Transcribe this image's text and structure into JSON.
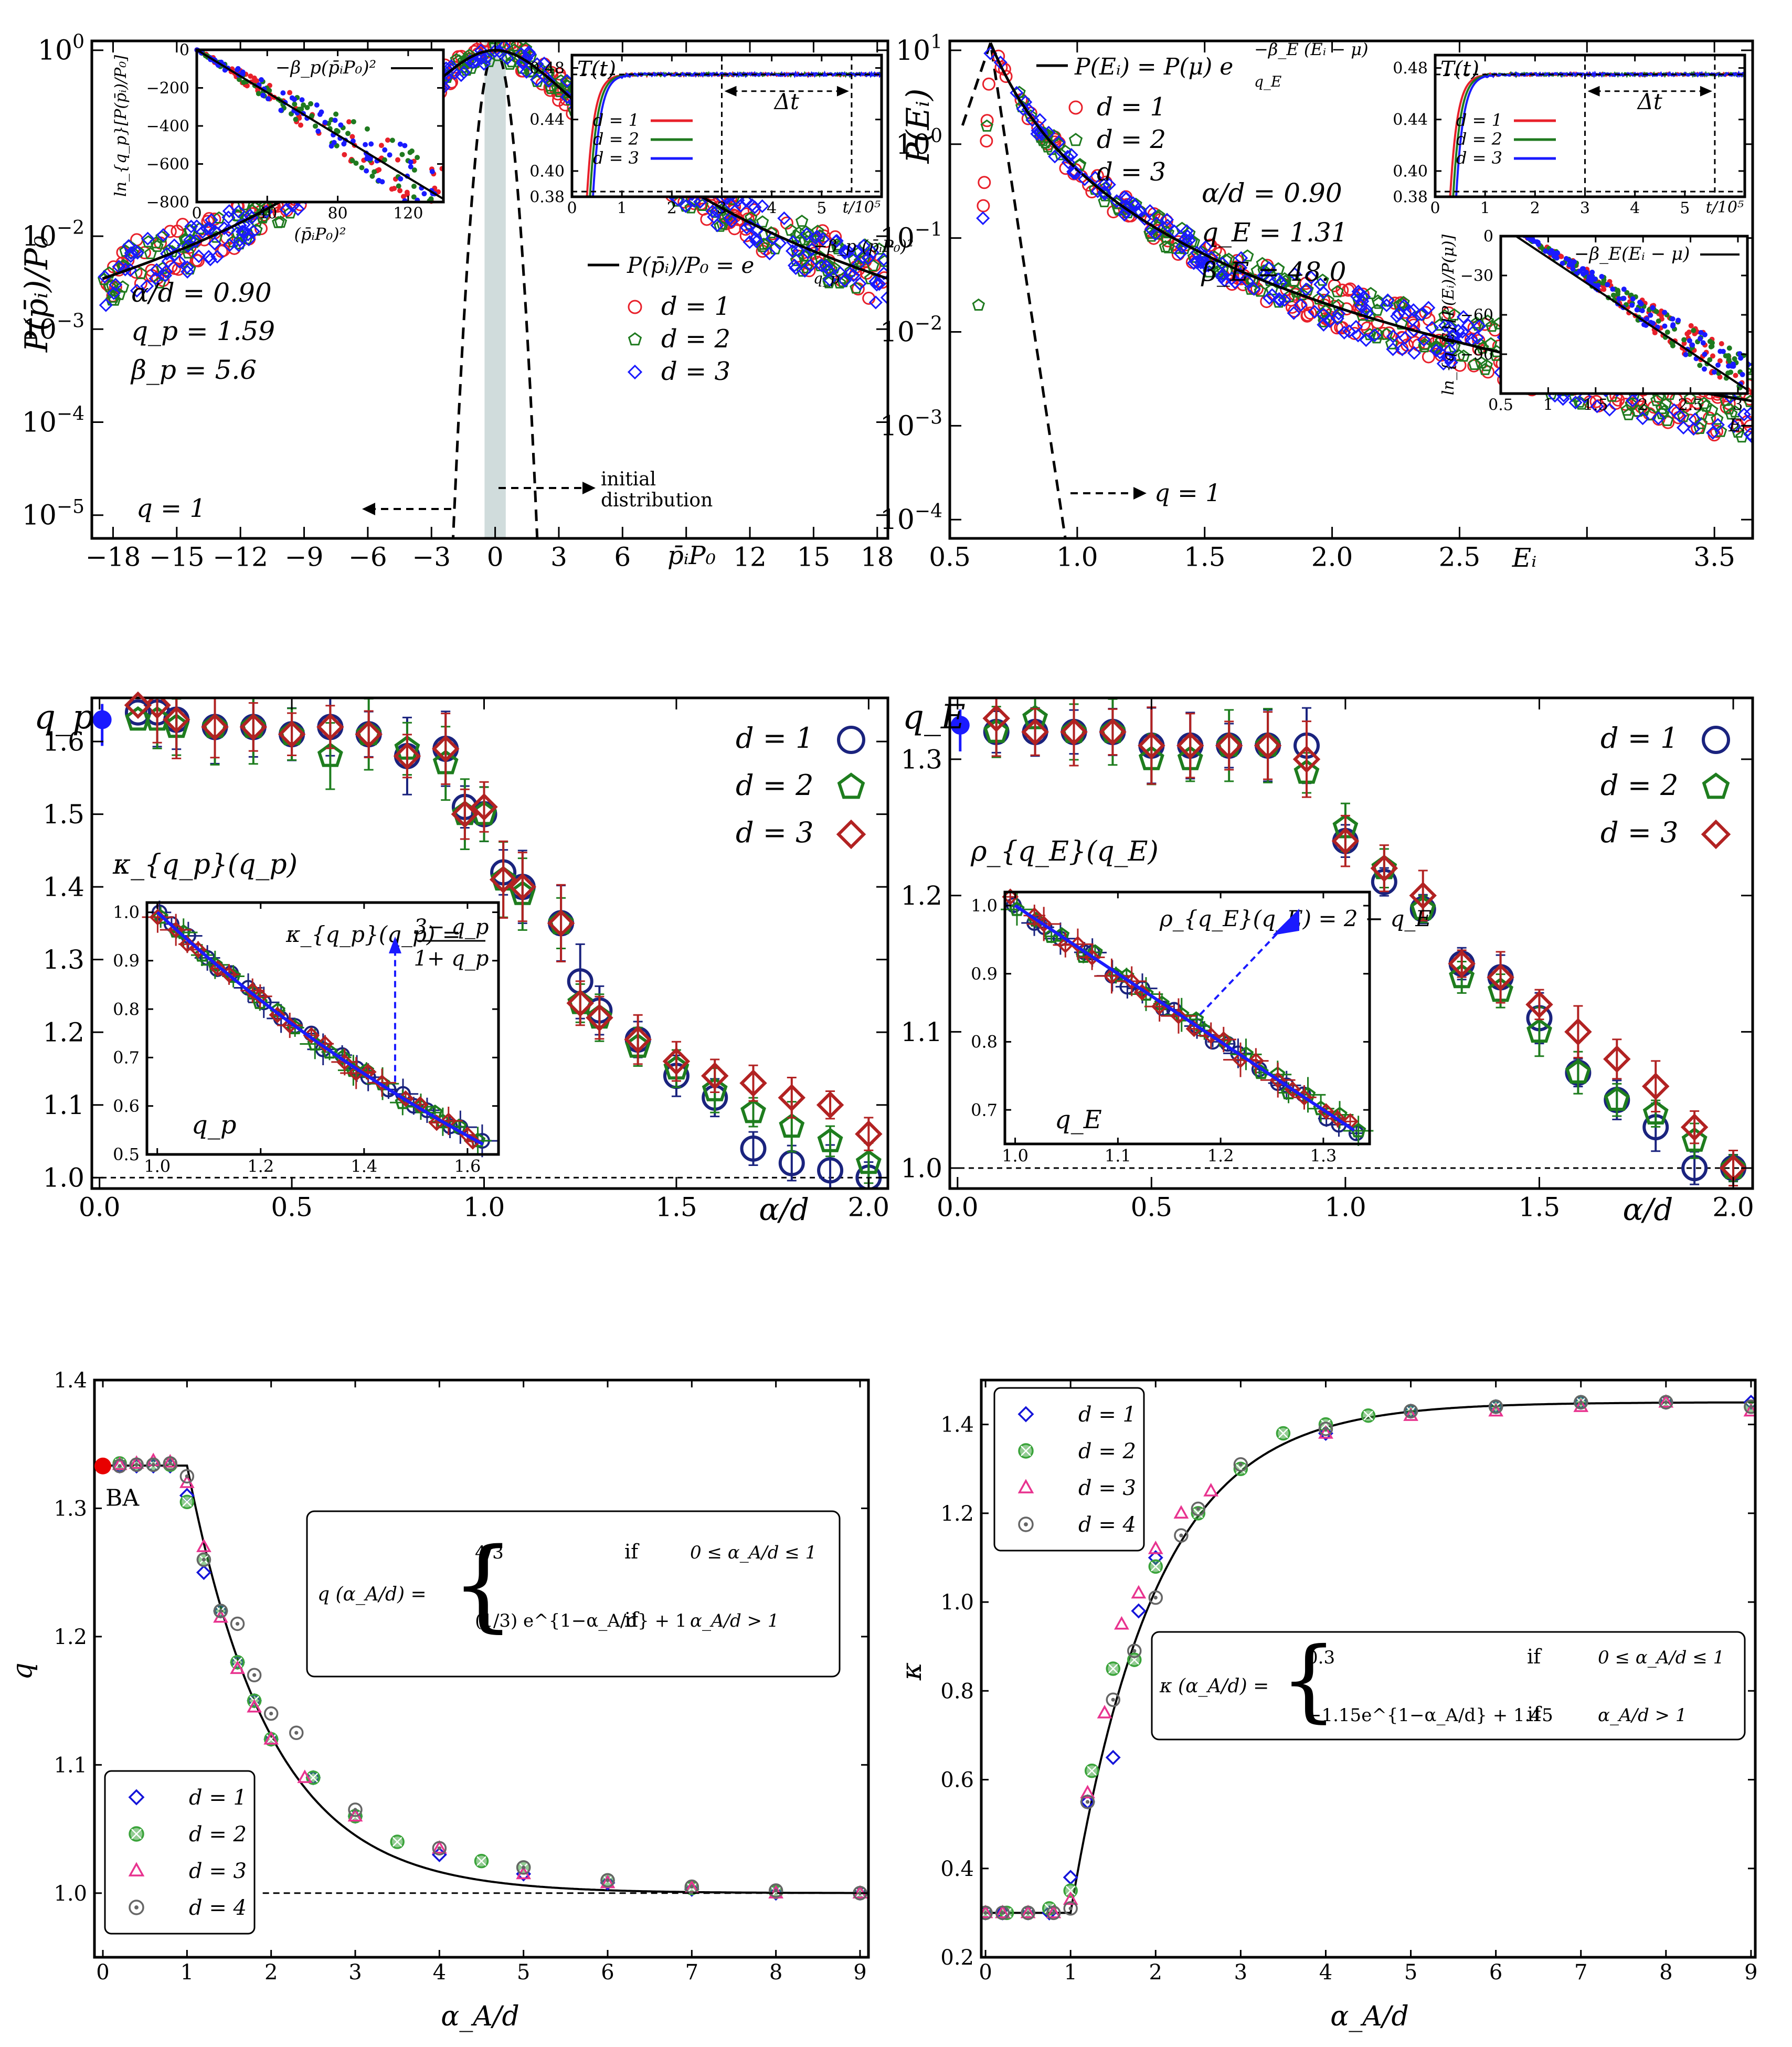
{
  "colors": {
    "d1": "#e8202a",
    "d2": "#1f7a1f",
    "d3": "#1a1aff",
    "d1_big": "#1a237e",
    "d2_big": "#1e7d1e",
    "d3_big": "#b22222",
    "d1_bottom": "#1414d9",
    "d2_bottom": "#3aa33a",
    "d3_bottom": "#e8338f",
    "d4_bottom": "#666666",
    "ba": "#e80000",
    "shade": "#b0c4c4"
  },
  "chart_data": [
    {
      "id": "top-left",
      "type": "scatter",
      "title": "",
      "xlabel": "p̄ᵢP₀",
      "ylabel": "P(p̄ᵢ)/P₀",
      "xlim": [
        -19,
        18.5
      ],
      "ylim_log10": [
        -5.25,
        0.1
      ],
      "xticks": [
        -18,
        -15,
        -12,
        -9,
        -6,
        -3,
        0,
        3,
        6,
        9,
        12,
        15,
        18
      ],
      "xtick_labels": [
        "−18",
        "−15",
        "−12",
        "−9",
        "−6",
        "−3",
        "0",
        "3",
        "6",
        "",
        "12",
        "15",
        "18"
      ],
      "yticks_log10": [
        0,
        -2,
        -3,
        -4,
        -5
      ],
      "legend": {
        "formula": "P(p̄ᵢ)/P₀ = e_{q_p}^{−β_p(p̄ᵢP₀)²}",
        "entries": [
          "d = 1",
          "d = 2",
          "d = 3"
        ],
        "location": "right"
      },
      "params": [
        "α/d = 0.90",
        "q_p = 1.59",
        "β_p = 5.6"
      ],
      "q_p": 1.59,
      "beta_p": 5.6,
      "annotations": [
        "q = 1",
        "initial",
        "distribution"
      ],
      "initial_distribution_range": [
        -0.5,
        0.5
      ]
    },
    {
      "id": "top-right",
      "type": "scatter",
      "xlabel": "Eᵢ",
      "ylabel": "P(Eᵢ)",
      "xlim": [
        0.5,
        3.65
      ],
      "ylim_log10": [
        -4.2,
        1.1
      ],
      "xticks": [
        0.5,
        1.0,
        1.5,
        2.0,
        2.5,
        3.0,
        3.5
      ],
      "xtick_labels": [
        "0.5",
        "1.0",
        "1.5",
        "2.0",
        "2.5",
        "",
        "3.5"
      ],
      "yticks_log10": [
        1,
        0,
        -1,
        -2,
        -3,
        -4
      ],
      "legend": {
        "formula": "P(Eᵢ) = P(μ) e_{q_E}^{−β_E(Eᵢ−μ)}",
        "entries": [
          "d = 1",
          "d = 2",
          "d = 3"
        ],
        "location": "top-left"
      },
      "params": [
        "α/d = 0.90",
        "q_E = 1.31",
        "β_E = 48.0"
      ],
      "q_E": 1.31,
      "beta_E": 48.0,
      "mu": 0.66,
      "annotations": [
        "q = 1"
      ]
    },
    {
      "id": "inset-T-left",
      "type": "line",
      "title": "T(t)",
      "xlabel": "t/10⁵",
      "xlim": [
        0,
        6.2
      ],
      "ylim": [
        0.38,
        0.49
      ],
      "xticks": [
        0,
        1,
        2,
        3,
        4,
        5
      ],
      "yticks": [
        0.38,
        0.4,
        0.44,
        0.48
      ],
      "legend": [
        "d = 1",
        "d = 2",
        "d = 3"
      ],
      "delta_t_label": "Δt",
      "delta_t_range": [
        3,
        5.6
      ],
      "plateau": 0.475
    },
    {
      "id": "inset-T-right",
      "type": "line",
      "title": "T(t)",
      "xlabel": "t/10⁵",
      "xlim": [
        0,
        6.2
      ],
      "ylim": [
        0.38,
        0.49
      ],
      "xticks": [
        0,
        1,
        2,
        3,
        4,
        5
      ],
      "yticks": [
        0.38,
        0.4,
        0.44,
        0.48
      ],
      "legend": [
        "d = 1",
        "d = 2",
        "d = 3"
      ],
      "delta_t_label": "Δt",
      "delta_t_range": [
        3,
        5.6
      ],
      "plateau": 0.475
    },
    {
      "id": "inset-lnq-left",
      "type": "scatter",
      "xlabel": "(p̄ᵢP₀)²",
      "ylabel": "ln_{q_p}[P(p̄ᵢ)/P₀]",
      "legend": "−β_p(p̄ᵢP₀)²",
      "xlim": [
        0,
        140
      ],
      "ylim": [
        -800,
        0
      ],
      "xticks": [
        0,
        40,
        80,
        120
      ],
      "yticks": [
        0,
        -200,
        -400,
        -600,
        -800
      ],
      "slope": -5.6
    },
    {
      "id": "inset-lnq-right",
      "type": "scatter",
      "xlabel": "Eᵢ",
      "ylabel": "ln_{q_E}[P(Eᵢ)/P(μ)]",
      "legend": "−β_E(Eᵢ−μ)",
      "xlim": [
        0.5,
        3.1
      ],
      "ylim": [
        -120,
        0
      ],
      "xticks": [
        0.5,
        1.0,
        1.5,
        2.0,
        2.5,
        3.0
      ],
      "yticks": [
        0,
        -30,
        -60,
        -90
      ],
      "slope": -48
    },
    {
      "id": "middle-left",
      "type": "scatter",
      "xlabel": "α/d",
      "ylabel": "q_p",
      "xlim": [
        -0.02,
        2.05
      ],
      "ylim": [
        0.985,
        1.66
      ],
      "xticks": [
        0.0,
        0.5,
        1.0,
        1.5,
        2.0
      ],
      "yticks": [
        1.0,
        1.1,
        1.2,
        1.3,
        1.4,
        1.5,
        1.6
      ],
      "legend": [
        "d = 1",
        "d = 2",
        "d = 3"
      ],
      "x": [
        0.15,
        0.2,
        0.3,
        0.4,
        0.5,
        0.6,
        0.7,
        0.8,
        0.9,
        0.95,
        1.0,
        1.05,
        1.1,
        1.2,
        1.25,
        1.3,
        1.4,
        1.5,
        1.6,
        1.7,
        1.8,
        1.9,
        2.0
      ],
      "series": [
        {
          "name": "d = 1",
          "values": [
            1.64,
            1.63,
            1.62,
            1.62,
            1.61,
            1.62,
            1.61,
            1.58,
            1.59,
            1.51,
            1.5,
            1.42,
            1.4,
            1.35,
            1.27,
            1.23,
            1.19,
            1.14,
            1.11,
            1.04,
            1.02,
            1.01,
            1.0
          ]
        },
        {
          "name": "d = 2",
          "values": [
            1.63,
            1.62,
            1.62,
            1.62,
            1.61,
            1.58,
            1.61,
            1.59,
            1.57,
            1.5,
            1.5,
            1.41,
            1.39,
            1.35,
            1.24,
            1.22,
            1.18,
            1.15,
            1.12,
            1.09,
            1.07,
            1.05,
            1.02
          ]
        },
        {
          "name": "d = 3",
          "values": [
            1.65,
            1.63,
            1.62,
            1.62,
            1.61,
            1.62,
            1.61,
            1.58,
            1.59,
            1.5,
            1.51,
            1.41,
            1.4,
            1.35,
            1.24,
            1.22,
            1.19,
            1.16,
            1.14,
            1.13,
            1.11,
            1.1,
            1.06
          ]
        }
      ],
      "first_points": {
        "x": [
          0.1,
          0.1,
          0.1
        ],
        "values": [
          1.64,
          1.63,
          1.65
        ]
      },
      "reference_point": {
        "x": 0.0,
        "value": 1.63
      },
      "reference_line": 1.0
    },
    {
      "id": "middle-right",
      "type": "scatter",
      "xlabel": "α/d",
      "ylabel": "q_E",
      "xlim": [
        -0.02,
        2.05
      ],
      "ylim": [
        0.985,
        1.345
      ],
      "xticks": [
        0.0,
        0.5,
        1.0,
        1.5,
        2.0
      ],
      "yticks": [
        1.0,
        1.1,
        1.2,
        1.3
      ],
      "legend": [
        "d = 1",
        "d = 2",
        "d = 3"
      ],
      "x": [
        0.1,
        0.2,
        0.3,
        0.4,
        0.5,
        0.6,
        0.7,
        0.8,
        0.9,
        1.0,
        1.1,
        1.2,
        1.3,
        1.4,
        1.5,
        1.6,
        1.7,
        1.8,
        1.9,
        2.0
      ],
      "series": [
        {
          "name": "d = 1",
          "values": [
            1.32,
            1.32,
            1.32,
            1.32,
            1.31,
            1.31,
            1.31,
            1.31,
            1.31,
            1.24,
            1.21,
            1.19,
            1.15,
            1.14,
            1.11,
            1.07,
            1.05,
            1.03,
            1.0,
            1.0
          ]
        },
        {
          "name": "d = 2",
          "values": [
            1.32,
            1.33,
            1.32,
            1.32,
            1.3,
            1.3,
            1.31,
            1.31,
            1.29,
            1.25,
            1.22,
            1.19,
            1.14,
            1.13,
            1.1,
            1.07,
            1.05,
            1.04,
            1.02,
            1.0
          ]
        },
        {
          "name": "d = 3",
          "values": [
            1.33,
            1.32,
            1.32,
            1.32,
            1.31,
            1.31,
            1.31,
            1.31,
            1.3,
            1.24,
            1.22,
            1.2,
            1.15,
            1.14,
            1.12,
            1.1,
            1.08,
            1.06,
            1.03,
            1.0
          ]
        }
      ],
      "reference_point": {
        "x": 0.0,
        "value": 1.325
      },
      "reference_line": 1.0
    },
    {
      "id": "inset-kappa",
      "type": "scatter",
      "title": "κ_{q_p}(q_p)",
      "xlabel": "q_p",
      "xlim": [
        0.98,
        1.66
      ],
      "ylim": [
        0.5,
        1.02
      ],
      "xticks": [
        1.0,
        1.2,
        1.4,
        1.6
      ],
      "yticks": [
        0.5,
        0.6,
        0.7,
        0.8,
        0.9,
        1.0
      ],
      "formula": "κ_{q_p}(q_p) = (3 − q_p)/(1 + q_p)",
      "formula_num": "3− q_p",
      "formula_den": "1+ q_p"
    },
    {
      "id": "inset-rho",
      "type": "scatter",
      "title": "ρ_{q_E}(q_E)",
      "xlabel": "q_E",
      "xlim": [
        0.99,
        1.345
      ],
      "ylim": [
        0.65,
        1.02
      ],
      "xticks": [
        1.0,
        1.1,
        1.2,
        1.3
      ],
      "yticks": [
        0.7,
        0.8,
        0.9,
        1.0
      ],
      "formula": "ρ_{q_E}(q_E) = 2 − q_E"
    },
    {
      "id": "bottom-left",
      "type": "scatter",
      "xlabel": "α_A/d",
      "ylabel": "q",
      "xlim": [
        -0.1,
        9.1
      ],
      "ylim": [
        0.95,
        1.4
      ],
      "xticks": [
        0,
        1,
        2,
        3,
        4,
        5,
        6,
        7,
        8,
        9
      ],
      "yticks": [
        1.0,
        1.1,
        1.2,
        1.3,
        1.4
      ],
      "legend": [
        "d = 1",
        "d = 2",
        "d = 3",
        "d = 4"
      ],
      "series": [
        {
          "name": "d = 1",
          "x": [
            0.2,
            0.4,
            0.6,
            0.8,
            1.0,
            1.2,
            1.4,
            1.6,
            1.8,
            2.0,
            2.5,
            3.0,
            4.0,
            5.0,
            6.0,
            7.0,
            8.0,
            9.0
          ],
          "values": [
            1.333,
            1.333,
            1.333,
            1.333,
            1.31,
            1.25,
            1.22,
            1.18,
            1.15,
            1.12,
            1.09,
            1.06,
            1.03,
            1.015,
            1.008,
            1.003,
            1.0,
            1.0
          ]
        },
        {
          "name": "d = 2",
          "x": [
            0.2,
            0.4,
            0.6,
            0.8,
            1.0,
            1.2,
            1.4,
            1.6,
            1.8,
            2.0,
            2.5,
            3.0,
            3.5,
            4.5,
            5.0,
            6.0,
            7.0,
            8.0,
            9.0
          ],
          "values": [
            1.335,
            1.334,
            1.334,
            1.334,
            1.305,
            1.26,
            1.22,
            1.18,
            1.15,
            1.12,
            1.09,
            1.06,
            1.04,
            1.025,
            1.02,
            1.01,
            1.004,
            1.001,
            1.0
          ]
        },
        {
          "name": "d = 3",
          "x": [
            0.2,
            0.4,
            0.6,
            0.8,
            1.0,
            1.2,
            1.4,
            1.6,
            1.8,
            2.0,
            2.4,
            3.0,
            4.0,
            5.0,
            6.0,
            7.0,
            8.0,
            9.0
          ],
          "values": [
            1.334,
            1.335,
            1.337,
            1.336,
            1.32,
            1.27,
            1.215,
            1.175,
            1.145,
            1.12,
            1.09,
            1.06,
            1.035,
            1.015,
            1.008,
            1.004,
            1.0,
            1.0
          ]
        },
        {
          "name": "d = 4",
          "x": [
            0.2,
            0.4,
            0.6,
            0.8,
            1.0,
            1.2,
            1.4,
            1.6,
            1.8,
            2.0,
            2.3,
            3.0,
            4.0,
            5.0,
            6.0,
            7.0,
            8.0,
            9.0
          ],
          "values": [
            1.333,
            1.334,
            1.334,
            1.335,
            1.325,
            1.26,
            1.22,
            1.21,
            1.17,
            1.14,
            1.125,
            1.065,
            1.035,
            1.02,
            1.01,
            1.005,
            1.002,
            1.0
          ]
        }
      ],
      "fit": "q(α_A/d) = 4/3 if 0 ≤ α_A/d ≤ 1; (1/3)e^{1−α_A/d} + 1 if α_A/d > 1",
      "reference_point": {
        "label": "BA",
        "x": 0.0,
        "value": 1.333
      },
      "reference_line": 1.0
    },
    {
      "id": "bottom-right",
      "type": "scatter",
      "xlabel": "α_A/d",
      "ylabel": "κ",
      "xlim": [
        -0.05,
        9.05
      ],
      "ylim": [
        0.2,
        1.5
      ],
      "xticks": [
        0,
        1,
        2,
        3,
        4,
        5,
        6,
        7,
        8,
        9
      ],
      "yticks": [
        0.2,
        0.4,
        0.6,
        0.8,
        1.0,
        1.2,
        1.4
      ],
      "legend": [
        "d = 1",
        "d = 2",
        "d = 3",
        "d = 4"
      ],
      "series": [
        {
          "name": "d = 1",
          "x": [
            0.0,
            0.2,
            0.5,
            0.75,
            1.0,
            1.2,
            1.5,
            1.8,
            2.0,
            4.0,
            5.0,
            6.0,
            7.0,
            8.0,
            9.0
          ],
          "values": [
            0.3,
            0.3,
            0.3,
            0.3,
            0.38,
            0.55,
            0.65,
            0.98,
            1.1,
            1.38,
            1.43,
            1.44,
            1.45,
            1.45,
            1.45
          ]
        },
        {
          "name": "d = 2",
          "x": [
            0.0,
            0.25,
            0.5,
            0.75,
            1.0,
            1.25,
            1.5,
            1.75,
            2.0,
            2.5,
            3.0,
            3.5,
            4.0,
            4.5,
            5.0,
            6.0,
            7.0,
            8.0,
            9.0
          ],
          "values": [
            0.3,
            0.3,
            0.3,
            0.31,
            0.35,
            0.62,
            0.85,
            0.87,
            1.08,
            1.2,
            1.3,
            1.38,
            1.4,
            1.42,
            1.43,
            1.44,
            1.45,
            1.45,
            1.44
          ]
        },
        {
          "name": "d = 3",
          "x": [
            0.0,
            0.2,
            0.5,
            0.8,
            1.0,
            1.2,
            1.4,
            1.6,
            1.8,
            2.0,
            2.3,
            2.65,
            4.0,
            5.0,
            6.0,
            7.0,
            8.0,
            9.0
          ],
          "values": [
            0.3,
            0.3,
            0.3,
            0.3,
            0.33,
            0.57,
            0.75,
            0.95,
            1.02,
            1.12,
            1.2,
            1.25,
            1.38,
            1.42,
            1.43,
            1.44,
            1.45,
            1.43
          ]
        },
        {
          "name": "d = 4",
          "x": [
            0.0,
            0.2,
            0.5,
            0.8,
            1.0,
            1.2,
            1.5,
            1.75,
            2.0,
            2.3,
            2.5,
            3.0,
            4.0,
            5.0,
            6.0,
            7.0,
            8.0,
            9.0
          ],
          "values": [
            0.3,
            0.3,
            0.3,
            0.3,
            0.31,
            0.55,
            0.78,
            0.89,
            1.01,
            1.15,
            1.21,
            1.31,
            1.39,
            1.43,
            1.44,
            1.45,
            1.45,
            1.44
          ]
        }
      ],
      "fit": "κ(α_A/d) = 0.3 if 0 ≤ α_A/d ≤ 1; −1.15e^{1−α_A/d} + 1.45 if α_A/d > 1"
    }
  ],
  "text": {
    "tl_ylabel": "P(p̄ᵢ)/P₀",
    "tl_xlabel": "p̄ᵢP₀",
    "tl_params_1": "α/d = 0.90",
    "tl_params_2": "q_p = 1.59",
    "tl_params_3": "β_p = 5.6",
    "tl_legend_formula": "P(p̄ᵢ)/P₀ = e",
    "tl_legend_exp": "−β_p (p̄ᵢP₀)²",
    "tl_legend_sub": "q_p",
    "tl_q1": "q = 1",
    "tl_init1": "initial",
    "tl_init2": "distribution",
    "tr_ylabel": "P(Eᵢ)",
    "tr_xlabel": "Eᵢ",
    "tr_params_1": "α/d = 0.90",
    "tr_params_2": "q_E = 1.31",
    "tr_params_3": "β_E = 48.0",
    "tr_legend_formula": "P(Eᵢ) = P(μ) e",
    "tr_legend_exp": "−β_E (Eᵢ − μ)",
    "tr_legend_sub": "q_E",
    "tr_q1": "q = 1",
    "inset_T_title": "T(t)",
    "inset_T_xlabel": "t/10⁵",
    "inset_T_delta": "Δt",
    "inset_lnl_legend": "−β_p(p̄ᵢP₀)²",
    "inset_lnl_ylabel": "ln_{q_p}[P(p̄ᵢ)/P₀]",
    "inset_lnl_xlabel": "(p̄ᵢP₀)²",
    "inset_lnr_legend": "−β_E(Eᵢ − μ)",
    "inset_lnr_ylabel": "ln_{q_E}[P(Eᵢ)/P(μ)]",
    "inset_lnr_xlabel": "Eᵢ",
    "ml_ylabel": "q_p",
    "ml_xlabel": "α/d",
    "mr_ylabel": "q_E",
    "mr_xlabel": "α/d",
    "kappa_title": "κ_{q_p}(q_p)",
    "kappa_formula_lhs": "κ_{q_p}(q_p) =",
    "kappa_xlabel": "q_p",
    "rho_title": "ρ_{q_E}(q_E)",
    "rho_formula": "ρ_{q_E}(q_E) = 2 − q_E",
    "rho_xlabel": "q_E",
    "bl_ylabel": "q",
    "bl_xlabel": "α_A/d",
    "bl_ba": "BA",
    "bl_fit_lhs": "q (α_A/d) =",
    "bl_fit_case1": "4/3",
    "bl_fit_case1_cond": "0 ≤ α_A/d ≤ 1",
    "bl_fit_case2": "(1/3) e^{1−α_A/d} + 1",
    "bl_fit_case2_cond": "α_A/d > 1",
    "br_ylabel": "κ",
    "br_xlabel": "α_A/d",
    "br_fit_lhs": "κ (α_A/d) =",
    "br_fit_case1": "0.3",
    "br_fit_case1_cond": "0 ≤ α_A/d ≤ 1",
    "br_fit_case2": "−1.15e^{1−α_A/d} + 1.45",
    "br_fit_case2_cond": "α_A/d > 1",
    "if_word": "if"
  }
}
